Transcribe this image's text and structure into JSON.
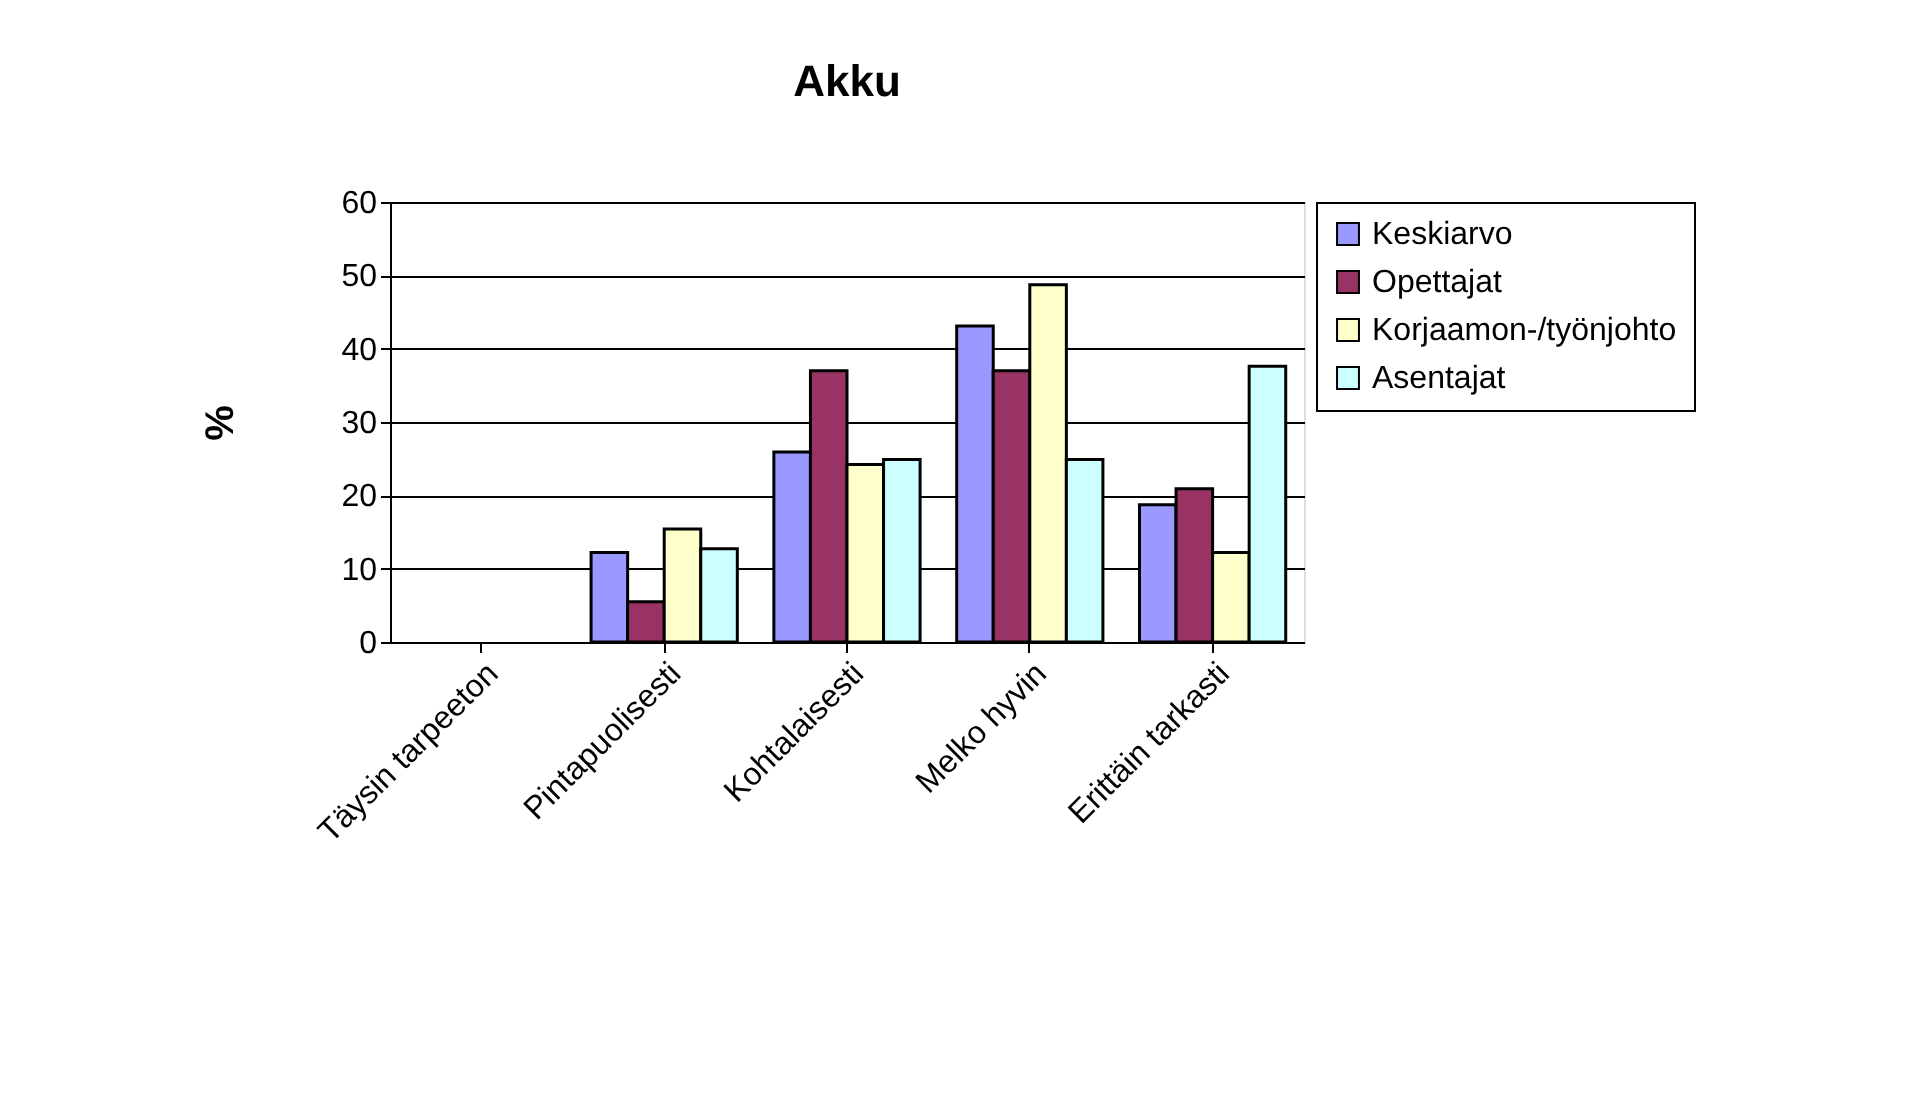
{
  "chart_data": {
    "type": "bar",
    "title": "Akku",
    "ylabel": "%",
    "categories": [
      "Täysin tarpeeton",
      "Pintapuolisesti",
      "Kohtalaisesti",
      "Melko hyvin",
      "Erittäin tarkasti"
    ],
    "series": [
      {
        "name": "Keskiarvo",
        "color": "#9999ff",
        "values": [
          null,
          12.2,
          25.9,
          43.1,
          18.7
        ]
      },
      {
        "name": "Opettajat",
        "color": "#993366",
        "values": [
          null,
          5.5,
          37,
          37,
          20.9
        ]
      },
      {
        "name": "Korjaamon-/työnjohto",
        "color": "#ffffcc",
        "values": [
          null,
          15.4,
          24.2,
          48.7,
          12.2
        ]
      },
      {
        "name": "Asentajat",
        "color": "#ccffff",
        "values": [
          null,
          12.7,
          24.9,
          24.9,
          37.6
        ]
      }
    ],
    "ylim": [
      0,
      60
    ],
    "yticks": [
      0,
      10,
      20,
      30,
      40,
      50,
      60
    ],
    "grid": "y",
    "legend": "right"
  }
}
